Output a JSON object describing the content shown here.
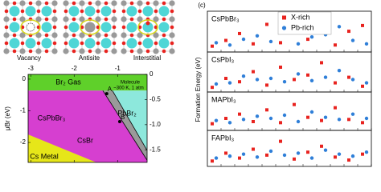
{
  "lattice_labels": [
    "Vacancy",
    "Antisite",
    "Interstitial"
  ],
  "chart_data": [
    {
      "type": "phase",
      "y_label": "μBr (eV)",
      "xlim": [
        -3.06,
        -0.32
      ],
      "xticks": [
        -3,
        -2,
        -1
      ],
      "ylim": [
        -2.63,
        0.15
      ],
      "yticks": [
        0,
        -1,
        -2
      ],
      "y2lim": [
        -1.75,
        0
      ],
      "y2ticks": [
        0,
        -0.5,
        {
          "value": -1,
          "label": "-1.0"
        },
        -1.5
      ],
      "regions": [
        {
          "color": "#d63fd0",
          "x": [
            -3.06,
            -1.34,
            -0.32,
            -0.32,
            -3.06
          ],
          "y": [
            -0.36,
            -0.36,
            -2.56,
            -2.63,
            -2.63
          ]
        },
        {
          "color": "#8de8dc",
          "x": [
            -1.12,
            -0.32,
            -0.32
          ],
          "y": [
            -0.36,
            -0.36,
            -2.25
          ]
        },
        {
          "color": "#9a9a9a",
          "x": [
            -1.34,
            -1.12,
            -0.32,
            -0.32
          ],
          "y": [
            -0.36,
            -0.36,
            -2.25,
            -2.56
          ]
        },
        {
          "color": "#e6e619",
          "x": [
            -3.06,
            -3.06,
            -1.49
          ],
          "y": [
            -1.75,
            -2.63,
            -2.63
          ]
        },
        {
          "color": "#5fd02a",
          "x": [
            -3.06,
            -0.32,
            -0.32,
            -3.06
          ],
          "y": [
            0.15,
            0.15,
            -0.36,
            -0.36
          ]
        }
      ],
      "lines": [
        {
          "x": [
            -1.34,
            -0.32
          ],
          "y": [
            -0.36,
            -2.56
          ]
        },
        {
          "x": [
            -1.12,
            -0.32
          ],
          "y": [
            -0.36,
            -2.25
          ]
        }
      ],
      "points": [
        {
          "label": "A",
          "x": -1.25,
          "y": -0.46
        },
        {
          "label": "B",
          "x": -0.95,
          "y": -1.34
        }
      ],
      "annotations": [
        "Br₂ Gas",
        "Molecule",
        "~300 K, 1 atm",
        "PbBr₂",
        "CsPbBr₃",
        "CsBr",
        "Cs Metal"
      ]
    },
    {
      "type": "strip",
      "label": "(c)",
      "y_label": "Formation Energy (eV)",
      "ylim": [
        0,
        3
      ],
      "categories": [
        null,
        null,
        null,
        null,
        null,
        null,
        null,
        null,
        null,
        null,
        null,
        null
      ],
      "series": [
        {
          "name": "X-rich",
          "color": "#e8231f"
        },
        {
          "name": "Pb-rich",
          "color": "#2f7fd8"
        }
      ],
      "panels": [
        {
          "title": "CsPbBr₃",
          "values": [
            [
              0.3,
              0.8,
              1.4,
              0.5,
              2.2,
              0.6,
              1.8,
              0.9,
              2.6,
              0.4,
              1.6,
              2.1
            ],
            [
              0.6,
              0.4,
              0.9,
              1.2,
              0.7,
              1.5,
              0.5,
              1.1,
              1.3,
              2.0,
              0.8,
              0.5
            ]
          ]
        },
        {
          "title": "CsPbI₃",
          "values": [
            [
              0.2,
              1.0,
              0.7,
              1.6,
              0.4,
              2.0,
              0.9,
              1.3,
              2.4,
              0.6,
              1.1,
              0.3
            ],
            [
              0.5,
              0.6,
              1.2,
              0.9,
              1.0,
              0.7,
              1.4,
              0.8,
              1.1,
              1.7,
              0.9,
              0.6
            ]
          ]
        },
        {
          "title": "MAPbI₃",
          "values": [
            [
              0.4,
              0.9,
              1.3,
              0.6,
              1.7,
              0.5,
              2.2,
              1.0,
              0.7,
              1.9,
              0.8,
              0.5
            ],
            [
              0.7,
              0.5,
              0.8,
              1.1,
              0.9,
              1.2,
              0.6,
              1.5,
              1.0,
              0.8,
              1.3,
              0.9
            ]
          ]
        },
        {
          "title": "FAPbI₃",
          "values": [
            [
              0.3,
              1.1,
              0.6,
              1.5,
              0.9,
              2.3,
              0.5,
              1.2,
              1.8,
              0.7,
              0.4,
              1.0
            ],
            [
              0.6,
              0.8,
              1.0,
              0.7,
              1.3,
              0.9,
              1.1,
              0.6,
              1.4,
              1.0,
              0.8,
              1.2
            ]
          ]
        }
      ]
    }
  ]
}
